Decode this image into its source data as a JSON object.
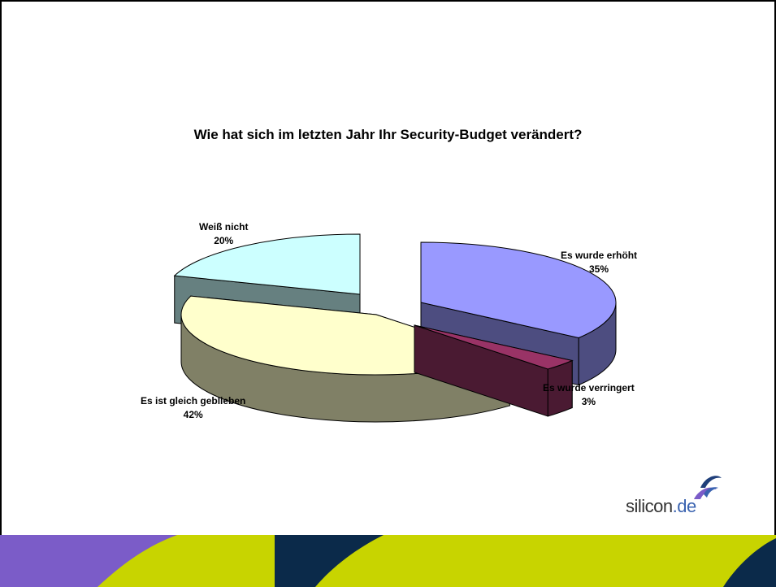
{
  "chart_data": {
    "type": "pie",
    "title": "Wie hat sich im letzten Jahr Ihr Security-Budget verändert?",
    "slices": [
      {
        "label": "Es wurde erhöht",
        "value": 35,
        "value_text": "35%",
        "top_color": "#9999ff",
        "side_color": "#4d4d80"
      },
      {
        "label": "Es wurde verringert",
        "value": 3,
        "value_text": "3%",
        "top_color": "#993366",
        "side_color": "#4a1a32"
      },
      {
        "label": "Es ist gleich geblieben",
        "value": 42,
        "value_text": "42%",
        "top_color": "#ffffcc",
        "side_color": "#808066"
      },
      {
        "label": "Weiß nicht",
        "value": 20,
        "value_text": "20%",
        "top_color": "#ccffff",
        "side_color": "#668080"
      }
    ],
    "exploded": true,
    "three_d": true
  },
  "logo": {
    "name": "silicon",
    "tld": ".de"
  },
  "colors": {
    "footer_purple": "#7b5cc8",
    "footer_lime": "#c8d400",
    "footer_navy": "#0b2a4a"
  }
}
